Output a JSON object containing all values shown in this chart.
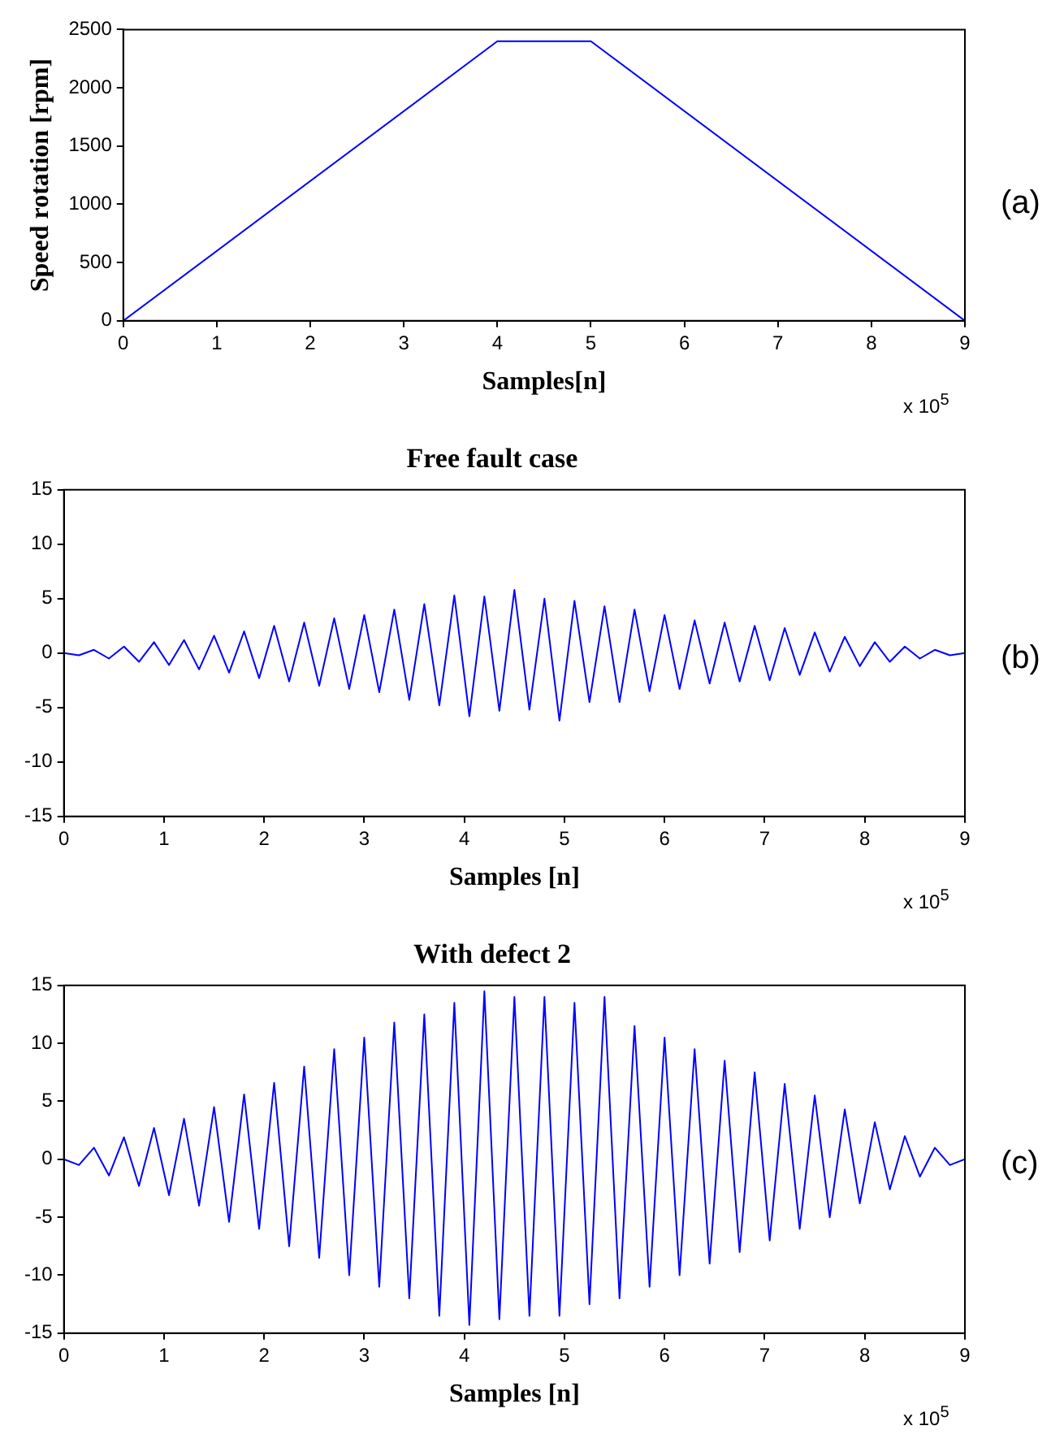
{
  "chart_data": [
    {
      "type": "line",
      "xlabel": "Samples[n]",
      "ylabel": "Speed rotation [rpm]",
      "x": [
        0,
        4,
        5,
        9
      ],
      "values": [
        0,
        2400,
        2400,
        0
      ],
      "color": "#0000ff",
      "xlim": [
        0,
        9
      ],
      "xticks": [
        0,
        1,
        2,
        3,
        4,
        5,
        6,
        7,
        8,
        9
      ],
      "ylim": [
        0,
        2500
      ],
      "yticks": [
        0,
        500,
        1000,
        1500,
        2000,
        2500
      ],
      "annotations": [
        "x 10$^{5}$",
        "(a)"
      ]
    },
    {
      "type": "line",
      "title": "Free fault case",
      "xlabel": "Samples [n]",
      "x": [
        0,
        0.15,
        0.3,
        0.45,
        0.6,
        0.75,
        0.9,
        1.05,
        1.2,
        1.35,
        1.5,
        1.65,
        1.8,
        1.95,
        2.1,
        2.25,
        2.4,
        2.55,
        2.7,
        2.85,
        3,
        3.15,
        3.3,
        3.45,
        3.6,
        3.75,
        3.9,
        4.05,
        4.2,
        4.35,
        4.5,
        4.65,
        4.8,
        4.95,
        5.1,
        5.25,
        5.4,
        5.55,
        5.7,
        5.85,
        6,
        6.15,
        6.3,
        6.45,
        6.6,
        6.75,
        6.9,
        7.05,
        7.2,
        7.35,
        7.5,
        7.65,
        7.8,
        7.95,
        8.1,
        8.25,
        8.4,
        8.55,
        8.7,
        8.85,
        9
      ],
      "values": [
        0,
        -0.2,
        0.3,
        -0.5,
        0.6,
        -0.8,
        1,
        -1.1,
        1.2,
        -1.5,
        1.6,
        -1.8,
        2,
        -2.3,
        2.5,
        -2.6,
        2.8,
        -3,
        3.2,
        -3.3,
        3.5,
        -3.6,
        4,
        -4.3,
        4.5,
        -4.8,
        5.3,
        -5.8,
        5.2,
        -5.3,
        5.8,
        -5.2,
        5,
        -6.2,
        4.8,
        -4.5,
        4.3,
        -4.5,
        4,
        -3.5,
        3.5,
        -3.3,
        3,
        -2.8,
        2.8,
        -2.6,
        2.5,
        -2.5,
        2.3,
        -2,
        1.9,
        -1.7,
        1.5,
        -1.2,
        1,
        -0.8,
        0.6,
        -0.5,
        0.3,
        -0.2,
        0
      ],
      "color": "#0000ff",
      "xlim": [
        0,
        9
      ],
      "xticks": [
        0,
        1,
        2,
        3,
        4,
        5,
        6,
        7,
        8,
        9
      ],
      "ylim": [
        -15,
        15
      ],
      "yticks": [
        -15,
        -10,
        -5,
        0,
        5,
        10,
        15
      ],
      "annotations": [
        "x 10$^{5}$",
        "(b)"
      ]
    },
    {
      "type": "line",
      "title": "With defect 2",
      "xlabel": "Samples [n]",
      "x": [
        0,
        0.15,
        0.3,
        0.45,
        0.6,
        0.75,
        0.9,
        1.05,
        1.2,
        1.35,
        1.5,
        1.65,
        1.8,
        1.95,
        2.1,
        2.25,
        2.4,
        2.55,
        2.7,
        2.85,
        3,
        3.15,
        3.3,
        3.45,
        3.6,
        3.75,
        3.9,
        4.05,
        4.2,
        4.35,
        4.5,
        4.65,
        4.8,
        4.95,
        5.1,
        5.25,
        5.4,
        5.55,
        5.7,
        5.85,
        6,
        6.15,
        6.3,
        6.45,
        6.6,
        6.75,
        6.9,
        7.05,
        7.2,
        7.35,
        7.5,
        7.65,
        7.8,
        7.95,
        8.1,
        8.25,
        8.4,
        8.55,
        8.7,
        8.85,
        9
      ],
      "values": [
        0,
        -0.5,
        1,
        -1.4,
        1.9,
        -2.3,
        2.7,
        -3.1,
        3.5,
        -4,
        4.5,
        -5.4,
        5.6,
        -6,
        6.6,
        -7.5,
        8,
        -8.5,
        9.5,
        -10,
        10.5,
        -11,
        11.8,
        -12,
        12.5,
        -13.5,
        13.5,
        -14.3,
        14.5,
        -13.8,
        14,
        -13.5,
        14,
        -13.5,
        13.5,
        -12.5,
        14,
        -12,
        11.5,
        -11,
        10.5,
        -10,
        9.5,
        -9,
        8.5,
        -8,
        7.5,
        -7,
        6.5,
        -6,
        5.5,
        -5,
        4.3,
        -3.8,
        3.2,
        -2.6,
        2,
        -1.5,
        1,
        -0.5,
        0
      ],
      "color": "#0000ff",
      "xlim": [
        0,
        9
      ],
      "xticks": [
        0,
        1,
        2,
        3,
        4,
        5,
        6,
        7,
        8,
        9
      ],
      "ylim": [
        -15,
        15
      ],
      "yticks": [
        -15,
        -10,
        -5,
        0,
        5,
        10,
        15
      ],
      "annotations": [
        "x 10$^{5}$",
        "(c)"
      ]
    }
  ]
}
